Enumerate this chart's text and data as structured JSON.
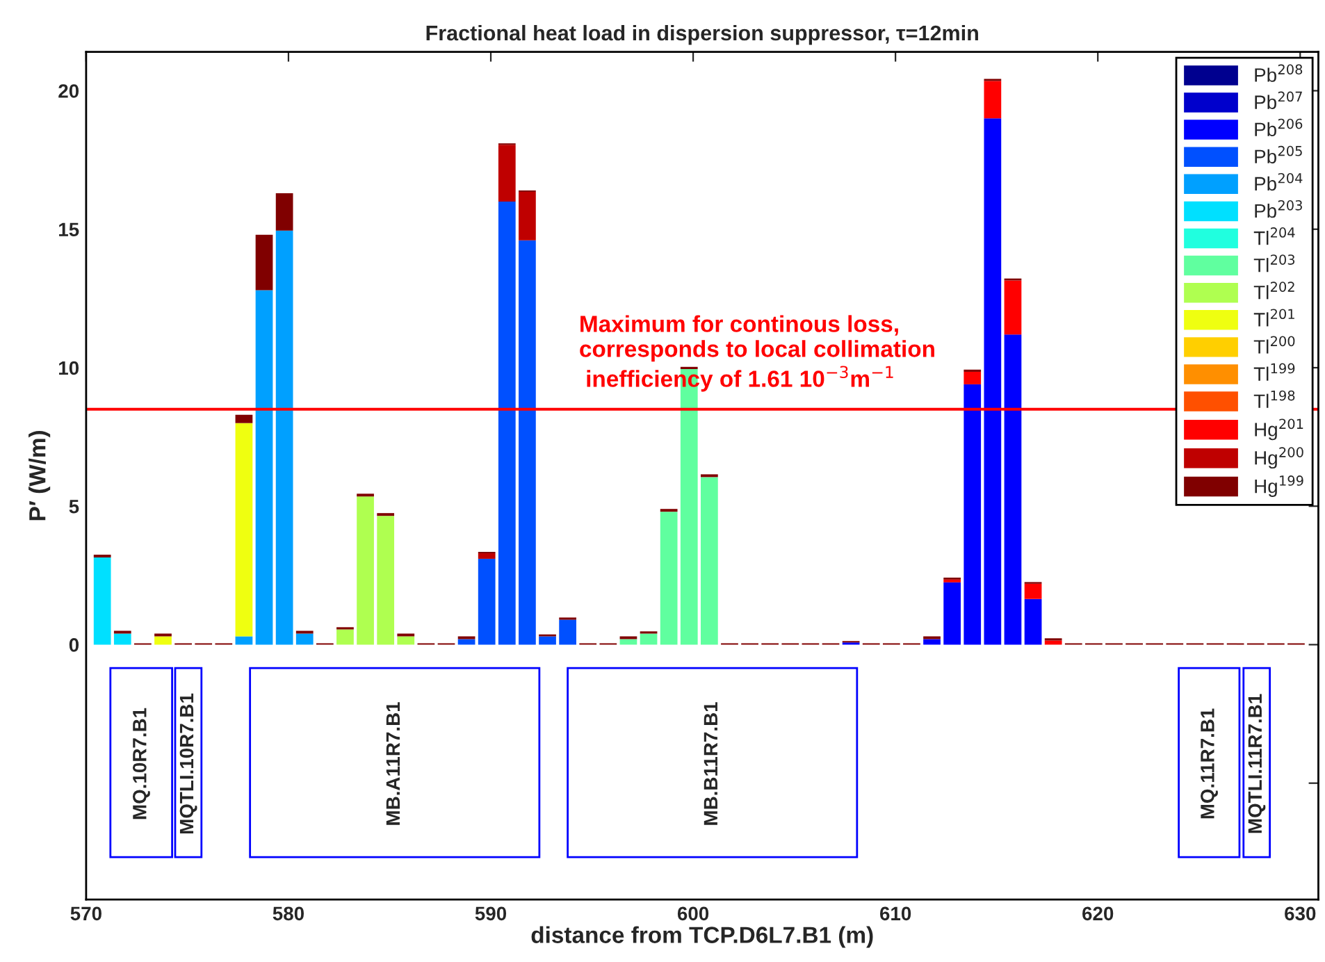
{
  "chart_data": {
    "type": "bar",
    "stacked": true,
    "title": "Fractional heat load in dispersion suppressor, τ=12min",
    "xlabel": "distance from TCP.D6L7.B1 (m)",
    "ylabel": "P′ (W/m)",
    "x": [
      570.8,
      571.8,
      572.8,
      573.8,
      574.8,
      575.8,
      576.8,
      577.8,
      578.8,
      579.8,
      580.8,
      581.8,
      582.8,
      583.8,
      584.8,
      585.8,
      586.8,
      587.8,
      588.8,
      589.8,
      590.8,
      591.8,
      592.8,
      593.8,
      594.8,
      595.8,
      596.8,
      597.8,
      598.8,
      599.8,
      600.8,
      601.8,
      602.8,
      603.8,
      604.8,
      605.8,
      606.8,
      607.8,
      608.8,
      609.8,
      610.8,
      611.8,
      612.8,
      613.8,
      614.8,
      615.8,
      616.8,
      617.8,
      618.8,
      619.8,
      620.8,
      621.8,
      622.8,
      623.8,
      624.8,
      625.8,
      626.8,
      627.8,
      628.8,
      629.8
    ],
    "xlim": [
      570,
      630.9
    ],
    "xticks": [
      570,
      580,
      590,
      600,
      610,
      620,
      630
    ],
    "ylim": [
      -9.2,
      21.4
    ],
    "yticks": [
      {
        "value": -5,
        "label": null
      },
      0,
      5,
      10,
      15,
      20
    ],
    "grid": false,
    "legend": "top right",
    "series": [
      {
        "name": "Pb$^{208}$",
        "color": "#00008f",
        "values": [
          null,
          null,
          null,
          null,
          null,
          null,
          null,
          null,
          null,
          null,
          null,
          null,
          null,
          null,
          null,
          null,
          null,
          null,
          null,
          null,
          null,
          null,
          null,
          null,
          null,
          null,
          null,
          null,
          null,
          null,
          null,
          null,
          null,
          null,
          null,
          null,
          null,
          null,
          null,
          null,
          null,
          null,
          null,
          null,
          null,
          null,
          null,
          null,
          null,
          null,
          null,
          null,
          null,
          null,
          null,
          null,
          null,
          null,
          null,
          null
        ]
      },
      {
        "name": "Pb$^{207}$",
        "color": "#0000cc",
        "values": [
          null,
          null,
          null,
          null,
          null,
          null,
          null,
          null,
          null,
          null,
          null,
          null,
          null,
          null,
          null,
          null,
          null,
          null,
          null,
          null,
          null,
          null,
          null,
          null,
          null,
          null,
          null,
          null,
          null,
          null,
          null,
          null,
          null,
          null,
          null,
          null,
          null,
          null,
          null,
          null,
          null,
          null,
          null,
          null,
          null,
          null,
          null,
          null,
          null,
          null,
          null,
          null,
          null,
          null,
          null,
          null,
          null,
          null,
          null,
          null
        ]
      },
      {
        "name": "Pb$^{206}$",
        "color": "#0000ff",
        "values": [
          null,
          null,
          null,
          null,
          null,
          null,
          null,
          null,
          null,
          null,
          null,
          null,
          null,
          null,
          null,
          null,
          null,
          null,
          null,
          null,
          null,
          null,
          null,
          null,
          null,
          null,
          null,
          null,
          null,
          null,
          null,
          null,
          null,
          null,
          null,
          null,
          null,
          0.08,
          null,
          null,
          null,
          0.2,
          2.25,
          9.4,
          19.0,
          11.2,
          1.65,
          null,
          null,
          null,
          null,
          null,
          null,
          null,
          null,
          null,
          null,
          null,
          null,
          null
        ]
      },
      {
        "name": "Pb$^{205}$",
        "color": "#0050ff",
        "values": [
          null,
          null,
          null,
          null,
          null,
          null,
          null,
          null,
          null,
          null,
          null,
          null,
          null,
          null,
          null,
          null,
          null,
          null,
          0.2,
          3.1,
          16.0,
          14.6,
          0.3,
          0.9,
          null,
          null,
          null,
          null,
          null,
          null,
          null,
          null,
          null,
          null,
          null,
          null,
          null,
          null,
          null,
          null,
          null,
          null,
          null,
          null,
          null,
          null,
          null,
          null,
          null,
          null,
          null,
          null,
          null,
          null,
          null,
          null,
          null,
          null,
          null,
          null
        ]
      },
      {
        "name": "Pb$^{204}$",
        "color": "#00a0ff",
        "values": [
          null,
          null,
          null,
          null,
          null,
          null,
          null,
          0.3,
          12.8,
          14.95,
          0.4,
          null,
          null,
          null,
          null,
          null,
          null,
          null,
          null,
          null,
          null,
          null,
          null,
          null,
          null,
          null,
          null,
          null,
          null,
          null,
          null,
          null,
          null,
          null,
          null,
          null,
          null,
          null,
          null,
          null,
          null,
          null,
          null,
          null,
          null,
          null,
          null,
          null,
          null,
          null,
          null,
          null,
          null,
          null,
          null,
          null,
          null,
          null,
          null,
          null
        ]
      },
      {
        "name": "Pb$^{203}$",
        "color": "#00e0ff",
        "values": [
          3.15,
          0.4,
          null,
          null,
          null,
          null,
          null,
          null,
          null,
          null,
          null,
          null,
          null,
          null,
          null,
          null,
          null,
          null,
          null,
          null,
          null,
          null,
          null,
          null,
          null,
          null,
          null,
          null,
          null,
          null,
          null,
          null,
          null,
          null,
          null,
          null,
          null,
          null,
          null,
          null,
          null,
          null,
          null,
          null,
          null,
          null,
          null,
          null,
          null,
          null,
          null,
          null,
          null,
          null,
          null,
          null,
          null,
          null,
          null,
          null
        ]
      },
      {
        "name": "Tl$^{204}$",
        "color": "#20ffdf",
        "values": [
          null,
          null,
          null,
          null,
          null,
          null,
          null,
          null,
          null,
          null,
          null,
          null,
          null,
          null,
          null,
          null,
          null,
          null,
          null,
          null,
          null,
          null,
          null,
          null,
          null,
          null,
          null,
          null,
          null,
          null,
          null,
          null,
          null,
          null,
          null,
          null,
          null,
          null,
          null,
          null,
          null,
          null,
          null,
          null,
          null,
          null,
          null,
          null,
          null,
          null,
          null,
          null,
          null,
          null,
          null,
          null,
          null,
          null,
          null,
          null
        ]
      },
      {
        "name": "Tl$^{203}$",
        "color": "#60ff9f",
        "values": [
          null,
          null,
          null,
          null,
          null,
          null,
          null,
          null,
          null,
          null,
          null,
          null,
          null,
          null,
          null,
          null,
          null,
          null,
          null,
          null,
          null,
          null,
          null,
          null,
          null,
          null,
          0.2,
          0.4,
          4.8,
          9.95,
          6.05,
          null,
          null,
          null,
          null,
          null,
          null,
          null,
          null,
          null,
          null,
          null,
          null,
          null,
          null,
          null,
          null,
          null,
          null,
          null,
          null,
          null,
          null,
          null,
          null,
          null,
          null,
          null,
          null,
          null
        ]
      },
      {
        "name": "Tl$^{202}$",
        "color": "#afff50",
        "values": [
          null,
          null,
          null,
          null,
          null,
          null,
          null,
          null,
          null,
          null,
          null,
          null,
          0.55,
          5.35,
          4.65,
          0.3,
          null,
          null,
          null,
          null,
          null,
          null,
          null,
          null,
          null,
          null,
          null,
          null,
          null,
          null,
          null,
          null,
          null,
          null,
          null,
          null,
          null,
          null,
          null,
          null,
          null,
          null,
          null,
          null,
          null,
          null,
          null,
          null,
          null,
          null,
          null,
          null,
          null,
          null,
          null,
          null,
          null,
          null,
          null,
          null
        ]
      },
      {
        "name": "Tl$^{201}$",
        "color": "#efff10",
        "values": [
          null,
          null,
          null,
          0.3,
          null,
          null,
          null,
          7.7,
          null,
          null,
          null,
          null,
          null,
          null,
          null,
          null,
          null,
          null,
          null,
          null,
          null,
          null,
          null,
          null,
          null,
          null,
          null,
          null,
          null,
          null,
          null,
          null,
          null,
          null,
          null,
          null,
          null,
          null,
          null,
          null,
          null,
          null,
          null,
          null,
          null,
          null,
          null,
          null,
          null,
          null,
          null,
          null,
          null,
          null,
          null,
          null,
          null,
          null,
          null,
          null
        ]
      },
      {
        "name": "Tl$^{200}$",
        "color": "#ffcf00",
        "values": [
          null,
          null,
          null,
          null,
          null,
          null,
          null,
          null,
          null,
          null,
          null,
          null,
          null,
          null,
          null,
          null,
          null,
          null,
          null,
          null,
          null,
          null,
          null,
          null,
          null,
          null,
          null,
          null,
          null,
          null,
          null,
          null,
          null,
          null,
          null,
          null,
          null,
          null,
          null,
          null,
          null,
          null,
          null,
          null,
          null,
          null,
          null,
          null,
          null,
          null,
          null,
          null,
          null,
          null,
          null,
          null,
          null,
          null,
          null,
          null
        ]
      },
      {
        "name": "Tl$^{199}$",
        "color": "#ff8f00",
        "values": [
          null,
          null,
          null,
          null,
          null,
          null,
          null,
          null,
          null,
          null,
          null,
          null,
          null,
          null,
          null,
          null,
          null,
          null,
          null,
          null,
          null,
          null,
          null,
          null,
          null,
          null,
          null,
          null,
          null,
          null,
          null,
          null,
          null,
          null,
          null,
          null,
          null,
          null,
          null,
          null,
          null,
          null,
          null,
          null,
          null,
          null,
          null,
          null,
          null,
          null,
          null,
          null,
          null,
          null,
          null,
          null,
          null,
          null,
          null,
          null
        ]
      },
      {
        "name": "Tl$^{198}$",
        "color": "#ff5000",
        "values": [
          null,
          null,
          null,
          null,
          null,
          null,
          null,
          null,
          null,
          null,
          null,
          null,
          null,
          null,
          null,
          null,
          null,
          null,
          null,
          null,
          null,
          null,
          null,
          null,
          null,
          null,
          null,
          null,
          null,
          null,
          null,
          null,
          null,
          null,
          null,
          null,
          null,
          null,
          null,
          null,
          null,
          null,
          null,
          null,
          null,
          null,
          null,
          null,
          null,
          null,
          null,
          null,
          null,
          null,
          null,
          null,
          null,
          null,
          null,
          null
        ]
      },
      {
        "name": "Hg$^{201}$",
        "color": "#ff0000",
        "values": [
          null,
          null,
          null,
          null,
          null,
          null,
          null,
          null,
          null,
          null,
          null,
          null,
          null,
          null,
          null,
          null,
          null,
          null,
          null,
          null,
          null,
          null,
          null,
          null,
          null,
          null,
          null,
          null,
          null,
          null,
          null,
          null,
          null,
          null,
          null,
          null,
          null,
          null,
          null,
          null,
          null,
          null,
          0.1,
          0.45,
          1.35,
          1.95,
          0.55,
          0.15,
          null,
          null,
          null,
          null,
          null,
          null,
          null,
          null,
          null,
          null,
          null,
          null
        ]
      },
      {
        "name": "Hg$^{200}$",
        "color": "#bf0000",
        "values": [
          null,
          null,
          null,
          null,
          null,
          null,
          null,
          null,
          null,
          null,
          null,
          null,
          null,
          null,
          null,
          null,
          null,
          null,
          null,
          0.2,
          2.05,
          1.75,
          null,
          null,
          null,
          null,
          null,
          null,
          null,
          null,
          null,
          null,
          null,
          null,
          null,
          null,
          null,
          null,
          null,
          null,
          null,
          null,
          null,
          null,
          null,
          null,
          null,
          null,
          null,
          null,
          null,
          null,
          null,
          null,
          null,
          null,
          null,
          null,
          null,
          null
        ]
      },
      {
        "name": "Hg$^{199}$",
        "color": "#800000",
        "values": [
          0.1,
          0.1,
          0.05,
          0.1,
          0.05,
          0.05,
          0.05,
          0.3,
          2.0,
          1.35,
          0.1,
          0.05,
          0.08,
          0.1,
          0.1,
          0.1,
          0.05,
          0.05,
          0.1,
          0.05,
          0.05,
          0.05,
          0.07,
          0.08,
          0.05,
          0.05,
          0.1,
          0.08,
          0.1,
          0.08,
          0.1,
          0.05,
          0.05,
          0.05,
          0.05,
          0.05,
          0.05,
          0.05,
          0.05,
          0.05,
          0.05,
          0.1,
          0.07,
          0.08,
          0.08,
          0.07,
          0.06,
          0.08,
          0.05,
          0.05,
          0.05,
          0.05,
          0.05,
          0.05,
          0.05,
          0.05,
          0.05,
          0.05,
          0.05,
          0.05
        ]
      }
    ],
    "ref_lines": [
      {
        "axis": "y",
        "value": 8.5,
        "color": "#ff0000",
        "label": "Maximum for continous loss,\ncorresponds to local collimation\n inefficiency of 1.61 10$^{−3}$m$^{−1}$"
      }
    ],
    "bands": [
      {
        "axis": "x",
        "from": 571.2,
        "to": 574.25,
        "label": "MQ.10R7.B1",
        "color": "#0000ff"
      },
      {
        "axis": "x",
        "from": 574.4,
        "to": 575.7,
        "label": "MQTLI.10R7.B1",
        "color": "#0000ff"
      },
      {
        "axis": "x",
        "from": 578.1,
        "to": 592.4,
        "label": "MB.A11R7.B1",
        "color": "#0000ff"
      },
      {
        "axis": "x",
        "from": 593.8,
        "to": 608.1,
        "label": "MB.B11R7.B1",
        "color": "#0000ff"
      },
      {
        "axis": "x",
        "from": 624.0,
        "to": 627.0,
        "label": "MQ.11R7.B1",
        "color": "#0000ff"
      },
      {
        "axis": "x",
        "from": 627.2,
        "to": 628.5,
        "label": "MQTLI.11R7.B1",
        "color": "#0000ff"
      }
    ]
  }
}
